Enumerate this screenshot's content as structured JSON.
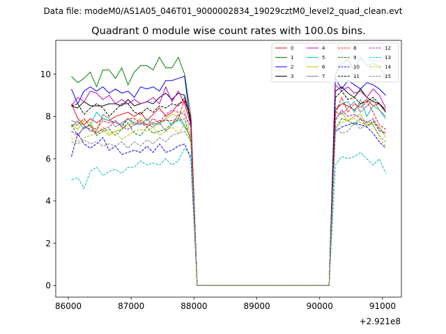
{
  "figure": {
    "suptitle": "Data file: modeM0/AS1A05_046T01_9000002834_19029cztM0_level2_quad_clean.evt"
  },
  "chart_data": {
    "type": "line",
    "title": "Quadrant 0 module wise count rates with 100.0s bins.",
    "xlabel": "",
    "ylabel": "",
    "x_offset_label": "+2.921e8",
    "xlim": [
      85800,
      91300
    ],
    "ylim": [
      -0.55,
      11.6
    ],
    "xticks": [
      86000,
      87000,
      88000,
      89000,
      90000,
      91000
    ],
    "xtick_labels": [
      "86000",
      "87000",
      "88000",
      "89000",
      "90000",
      "91000"
    ],
    "yticks": [
      0,
      2,
      4,
      6,
      8,
      10
    ],
    "ytick_labels": [
      "0",
      "2",
      "4",
      "6",
      "8",
      "10"
    ],
    "grid": false,
    "legend_position": "top-right",
    "legend_columns": 4,
    "x": [
      86050,
      86150,
      86250,
      86350,
      86450,
      86550,
      86650,
      86750,
      86850,
      86950,
      87050,
      87150,
      87250,
      87350,
      87450,
      87550,
      87650,
      87750,
      87850,
      87950,
      88050,
      90150,
      90250,
      90350,
      90450,
      90550,
      90650,
      90750,
      90850,
      90950,
      91050
    ],
    "series": [
      {
        "name": "0",
        "color": "#ff0000",
        "dash": "solid",
        "values": [
          8.6,
          7.9,
          7.6,
          7.9,
          7.7,
          7.9,
          7.8,
          8.0,
          8.1,
          8.2,
          8.0,
          8.2,
          7.8,
          8.1,
          8.4,
          8.0,
          8.2,
          8.6,
          8.7,
          8.0,
          0.0,
          0.0,
          8.3,
          8.6,
          8.5,
          8.3,
          8.6,
          8.8,
          8.5,
          8.6,
          8.2
        ]
      },
      {
        "name": "1",
        "color": "#008000",
        "dash": "solid",
        "values": [
          9.9,
          9.6,
          9.8,
          10.1,
          9.4,
          10.2,
          10.2,
          9.8,
          10.3,
          9.5,
          10.1,
          10.4,
          10.4,
          10.2,
          10.8,
          10.3,
          10.3,
          10.8,
          10.0,
          8.0,
          0.0,
          0.0,
          10.0,
          10.5,
          10.7,
          10.2,
          10.8,
          10.4,
          10.5,
          10.4,
          9.8
        ]
      },
      {
        "name": "2",
        "color": "#0000ff",
        "dash": "solid",
        "values": [
          9.3,
          8.6,
          9.2,
          9.4,
          9.2,
          9.4,
          9.1,
          9.3,
          9.1,
          9.2,
          8.9,
          9.4,
          9.3,
          9.4,
          9.2,
          9.7,
          9.7,
          9.8,
          9.9,
          7.5,
          0.0,
          0.0,
          9.8,
          9.3,
          9.7,
          9.5,
          9.3,
          9.6,
          9.5,
          9.3,
          9.0
        ]
      },
      {
        "name": "3",
        "color": "#000000",
        "dash": "solid",
        "values": [
          8.5,
          8.4,
          8.7,
          8.5,
          8.5,
          8.5,
          8.6,
          8.6,
          8.5,
          8.8,
          8.5,
          8.6,
          8.7,
          8.6,
          8.9,
          9.1,
          8.8,
          9.1,
          9.0,
          7.8,
          0.0,
          0.0,
          9.2,
          9.4,
          9.1,
          8.9,
          9.3,
          8.9,
          8.7,
          8.6,
          8.3
        ]
      },
      {
        "name": "4",
        "color": "#bf00bf",
        "dash": "solid",
        "values": [
          8.5,
          8.9,
          8.7,
          9.2,
          9.1,
          8.8,
          9.0,
          8.6,
          8.8,
          8.6,
          8.8,
          8.6,
          8.7,
          8.9,
          8.6,
          9.4,
          8.7,
          9.2,
          8.6,
          7.6,
          0.0,
          0.0,
          9.5,
          9.2,
          9.4,
          9.1,
          9.2,
          8.9,
          9.3,
          9.0,
          8.4
        ]
      },
      {
        "name": "5",
        "color": "#00bfbf",
        "dash": "solid",
        "values": [
          7.5,
          7.8,
          7.4,
          7.6,
          8.2,
          7.9,
          7.8,
          7.7,
          7.6,
          7.9,
          7.7,
          7.6,
          7.9,
          7.6,
          7.7,
          7.9,
          7.6,
          7.9,
          7.5,
          7.0,
          0.0,
          0.0,
          8.4,
          8.6,
          8.7,
          8.2,
          8.8,
          8.0,
          8.5,
          8.3,
          7.9
        ]
      },
      {
        "name": "6",
        "color": "#bfbf00",
        "dash": "solid",
        "values": [
          7.6,
          7.4,
          7.8,
          7.7,
          7.2,
          7.4,
          7.1,
          7.3,
          7.4,
          7.6,
          7.7,
          7.9,
          7.6,
          7.7,
          7.6,
          7.9,
          8.1,
          8.0,
          8.3,
          7.0,
          0.0,
          0.0,
          7.9,
          8.2,
          7.8,
          8.0,
          8.1,
          7.6,
          7.7,
          7.5,
          7.0
        ]
      },
      {
        "name": "7",
        "color": "#808080",
        "dash": "solid",
        "values": [
          7.8,
          7.7,
          7.6,
          7.3,
          7.3,
          8.1,
          7.9,
          7.5,
          7.7,
          7.9,
          7.6,
          7.7,
          7.6,
          7.5,
          7.7,
          7.3,
          7.6,
          8.1,
          7.6,
          6.9,
          0.0,
          0.0,
          8.2,
          8.1,
          8.4,
          8.7,
          8.2,
          8.5,
          8.8,
          8.3,
          8.0
        ]
      },
      {
        "name": "8",
        "color": "#ff0000",
        "dash": "dashed",
        "values": [
          7.6,
          7.6,
          7.9,
          7.5,
          7.4,
          7.8,
          7.7,
          7.8,
          7.5,
          7.9,
          7.9,
          7.7,
          7.5,
          7.7,
          7.8,
          7.8,
          7.8,
          7.9,
          8.8,
          8.0,
          0.0,
          0.0,
          8.1,
          8.9,
          8.2,
          8.6,
          8.4,
          8.7,
          8.2,
          7.6,
          7.4
        ]
      },
      {
        "name": "9",
        "color": "#008000",
        "dash": "dashed",
        "values": [
          7.6,
          7.1,
          7.5,
          7.6,
          7.1,
          7.3,
          7.4,
          7.1,
          7.4,
          7.7,
          7.2,
          7.1,
          7.5,
          7.2,
          7.3,
          7.4,
          7.7,
          7.8,
          7.9,
          6.8,
          0.0,
          0.0,
          7.4,
          7.9,
          7.8,
          7.6,
          7.9,
          7.5,
          7.8,
          7.3,
          7.2
        ]
      },
      {
        "name": "10",
        "color": "#0000ff",
        "dash": "dashed",
        "values": [
          6.1,
          7.2,
          6.7,
          6.5,
          6.7,
          7.0,
          6.4,
          6.6,
          6.2,
          6.3,
          6.4,
          6.3,
          6.6,
          6.3,
          6.7,
          6.3,
          6.4,
          6.6,
          6.7,
          6.0,
          0.0,
          0.0,
          7.3,
          7.5,
          7.6,
          7.7,
          7.6,
          7.5,
          7.2,
          6.8,
          6.5
        ]
      },
      {
        "name": "11",
        "color": "#000000",
        "dash": "dashed",
        "values": [
          8.5,
          8.6,
          8.1,
          8.4,
          8.6,
          8.4,
          8.0,
          8.3,
          8.6,
          8.6,
          8.2,
          8.1,
          8.4,
          8.2,
          8.5,
          8.4,
          8.6,
          8.5,
          8.9,
          7.7,
          0.0,
          0.0,
          8.9,
          9.2,
          8.8,
          8.9,
          8.6,
          8.7,
          8.9,
          8.6,
          8.2
        ]
      },
      {
        "name": "12",
        "color": "#bf00bf",
        "dash": "dashed",
        "values": [
          7.3,
          7.1,
          7.5,
          7.4,
          7.2,
          7.4,
          7.5,
          7.8,
          7.5,
          7.4,
          7.6,
          7.8,
          7.6,
          7.9,
          7.7,
          8.1,
          8.3,
          8.2,
          8.1,
          7.5,
          0.0,
          0.0,
          7.8,
          8.3,
          8.0,
          8.1,
          7.9,
          7.7,
          7.9,
          7.4,
          7.2
        ]
      },
      {
        "name": "13",
        "color": "#00bfbf",
        "dash": "dashed",
        "values": [
          5.0,
          5.1,
          4.6,
          5.4,
          5.6,
          5.2,
          5.4,
          5.5,
          5.3,
          5.6,
          5.6,
          5.9,
          5.7,
          5.8,
          5.7,
          6.0,
          5.7,
          5.9,
          6.5,
          6.2,
          0.0,
          0.0,
          5.7,
          6.1,
          6.0,
          6.1,
          6.3,
          6.0,
          5.7,
          6.0,
          5.3
        ]
      },
      {
        "name": "14",
        "color": "#bfbf00",
        "dash": "dashed",
        "values": [
          7.0,
          6.8,
          7.0,
          7.1,
          7.2,
          7.5,
          7.2,
          7.3,
          6.9,
          7.1,
          7.3,
          7.4,
          7.3,
          7.5,
          7.1,
          7.3,
          7.5,
          7.2,
          7.6,
          7.0,
          0.0,
          0.0,
          7.5,
          7.7,
          7.8,
          7.9,
          7.7,
          7.6,
          7.6,
          7.0,
          6.6
        ]
      },
      {
        "name": "15",
        "color": "#808080",
        "dash": "dashed",
        "values": [
          6.8,
          6.7,
          6.9,
          6.7,
          6.8,
          6.6,
          6.7,
          6.6,
          6.8,
          6.5,
          6.8,
          6.6,
          6.9,
          6.7,
          7.0,
          6.8,
          7.1,
          7.2,
          7.3,
          6.8,
          0.0,
          0.0,
          7.5,
          7.2,
          7.3,
          7.7,
          7.4,
          7.8,
          7.6,
          7.1,
          6.8
        ]
      }
    ]
  }
}
